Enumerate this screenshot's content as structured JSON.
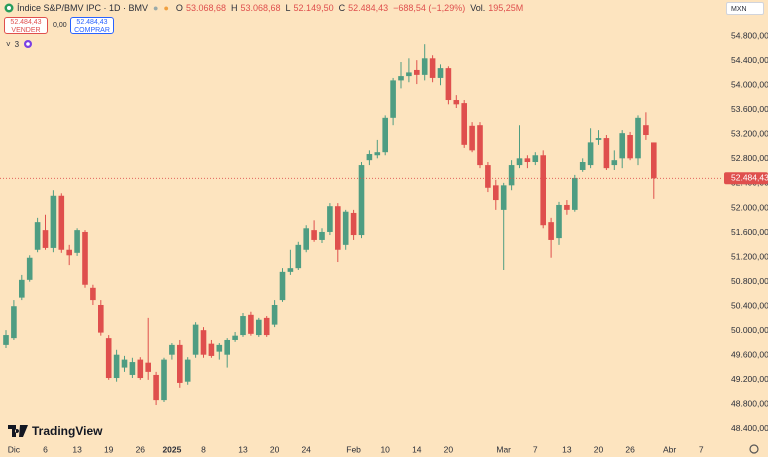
{
  "header": {
    "symbol": "Índice S&P/BMV IPC · 1D · BMV",
    "open_label": "O",
    "open": "53.068,68",
    "high_label": "H",
    "high": "53.068,68",
    "low_label": "L",
    "low": "52.149,50",
    "close_label": "C",
    "close": "52.484,43",
    "change": "−688,54 (−1,29%)",
    "volume_label": "Vol.",
    "volume": "195,25M"
  },
  "sell": {
    "price": "52.484,43",
    "label": "VENDER"
  },
  "spread": "0,00",
  "buy": {
    "price": "52.484,43",
    "label": "COMPRAR"
  },
  "indicators_count": "3",
  "currency": "MXN",
  "brand": "TradingView",
  "chart_data": {
    "type": "candlestick",
    "up_color": "#4e9d82",
    "down_color": "#df4f4d",
    "ylim": [
      48220,
      55390
    ],
    "yticks": [
      {
        "value": 54800,
        "label": "54.800,00"
      },
      {
        "value": 54400,
        "label": "54.400,00"
      },
      {
        "value": 54000,
        "label": "54.000,00"
      },
      {
        "value": 53600,
        "label": "53.600,00"
      },
      {
        "value": 53200,
        "label": "53.200,00"
      },
      {
        "value": 52800,
        "label": "52.800,00"
      },
      {
        "value": 52400,
        "label": "52.400,00"
      },
      {
        "value": 52000,
        "label": "52.000,00"
      },
      {
        "value": 51600,
        "label": "51.600,00"
      },
      {
        "value": 51200,
        "label": "51.200,00"
      },
      {
        "value": 50800,
        "label": "50.800,00"
      },
      {
        "value": 50400,
        "label": "50.400,00"
      },
      {
        "value": 50000,
        "label": "50.000,00"
      },
      {
        "value": 49600,
        "label": "49.600,00"
      },
      {
        "value": 49200,
        "label": "49.200,00"
      },
      {
        "value": 48800,
        "label": "48.800,00"
      },
      {
        "value": 48400,
        "label": "48.400,00"
      }
    ],
    "last_price_label": "52.484,43",
    "categories": [
      null,
      "Dic",
      null,
      null,
      null,
      "6",
      null,
      null,
      null,
      "13",
      null,
      null,
      null,
      "19",
      null,
      null,
      null,
      "26",
      null,
      null,
      null,
      "2025",
      null,
      null,
      null,
      "8",
      null,
      null,
      null,
      null,
      "13",
      null,
      null,
      null,
      "20",
      null,
      null,
      null,
      "24",
      null,
      null,
      null,
      null,
      null,
      "Feb",
      null,
      null,
      null,
      "10",
      null,
      null,
      null,
      "14",
      null,
      null,
      null,
      "20",
      null,
      null,
      null,
      null,
      null,
      null,
      "Mar",
      null,
      null,
      null,
      "7",
      null,
      null,
      null,
      "13",
      null,
      null,
      null,
      "20",
      null,
      null,
      null,
      "26",
      null,
      null,
      null,
      null,
      "Abr",
      null,
      null,
      null,
      "7"
    ],
    "open": [
      49770,
      49880,
      50540,
      50830,
      51320,
      51640,
      51350,
      52200,
      51320,
      51270,
      51610,
      50700,
      50420,
      49880,
      49230,
      49400,
      49280,
      49530,
      49480,
      49280,
      48870,
      49610,
      49770,
      49170,
      49610,
      50010,
      49790,
      49660,
      49610,
      49850,
      49930,
      50260,
      49930,
      50210,
      50100,
      50500,
      50960,
      51020,
      51320,
      51640,
      51480,
      51610,
      52030,
      51400,
      51920,
      51560,
      52780,
      52860,
      52910,
      53470,
      54080,
      54150,
      54250,
      54170,
      54440,
      54120,
      54280,
      53760,
      53710,
      53340,
      53350,
      52700,
      52370,
      51970,
      52370,
      52700,
      52810,
      52750,
      52860,
      51770,
      51510,
      52050,
      51970,
      52620,
      52700,
      53110,
      53140,
      52700,
      52810,
      53190,
      52810,
      53350,
      53068.68,
      null,
      null,
      null,
      null,
      null,
      null
    ],
    "high": [
      50010,
      50500,
      50910,
      51230,
      51840,
      51890,
      52290,
      52240,
      51400,
      51670,
      51640,
      50750,
      50500,
      49930,
      49690,
      49590,
      49560,
      49570,
      50210,
      49330,
      49560,
      49800,
      49850,
      49570,
      50140,
      50060,
      49850,
      49800,
      49880,
      49980,
      50290,
      50310,
      50210,
      50240,
      50500,
      51020,
      51320,
      51450,
      51720,
      51800,
      51670,
      52080,
      52080,
      51970,
      51970,
      52750,
      52940,
      53110,
      53510,
      54120,
      54380,
      54440,
      54410,
      54670,
      54490,
      54340,
      54310,
      53840,
      53760,
      53400,
      53400,
      52750,
      52460,
      52410,
      52780,
      53350,
      52860,
      52910,
      52940,
      51840,
      52100,
      52130,
      52540,
      52810,
      53300,
      53270,
      53190,
      52940,
      53270,
      53240,
      53510,
      53560,
      53068.68,
      null,
      null,
      null,
      null,
      null,
      null
    ],
    "low": [
      49720,
      49850,
      50500,
      50800,
      51280,
      51320,
      51280,
      51270,
      51070,
      51220,
      50700,
      50420,
      49920,
      49200,
      49170,
      49330,
      49230,
      49200,
      49200,
      48790,
      48840,
      49530,
      49070,
      49120,
      49560,
      49560,
      49560,
      49530,
      49400,
      49820,
      49900,
      49920,
      49900,
      49900,
      50060,
      50470,
      50910,
      50990,
      51280,
      51450,
      51430,
      51560,
      51120,
      51320,
      51480,
      51510,
      52700,
      52810,
      52860,
      53350,
      53950,
      54050,
      54020,
      54080,
      54050,
      54000,
      53690,
      53630,
      52980,
      52910,
      52650,
      52260,
      51970,
      50990,
      52290,
      52650,
      52650,
      52700,
      51670,
      51190,
      51400,
      51890,
      51940,
      52590,
      52650,
      53030,
      52620,
      52620,
      52650,
      52780,
      52700,
      53110,
      52149.5,
      null,
      null,
      null,
      null,
      null,
      null
    ],
    "close": [
      49930,
      50400,
      50830,
      51190,
      51770,
      51350,
      52200,
      51320,
      51230,
      51640,
      50750,
      50500,
      49970,
      49230,
      49610,
      49530,
      49490,
      49230,
      49330,
      48870,
      49530,
      49770,
      49150,
      49530,
      50100,
      49610,
      49590,
      49770,
      49850,
      49920,
      50240,
      49950,
      50180,
      49930,
      50420,
      50960,
      51020,
      51400,
      51670,
      51480,
      51610,
      52030,
      51320,
      51940,
      51560,
      52700,
      52880,
      52910,
      53470,
      54080,
      54150,
      54210,
      54170,
      54440,
      54120,
      54280,
      53760,
      53690,
      53030,
      52940,
      52700,
      52330,
      52130,
      52370,
      52700,
      52810,
      52750,
      52860,
      51720,
      51480,
      52050,
      51970,
      52490,
      52750,
      53070,
      53140,
      52650,
      52780,
      53220,
      52810,
      53470,
      53190,
      52484.43,
      null,
      null,
      null,
      null,
      null,
      null
    ]
  }
}
